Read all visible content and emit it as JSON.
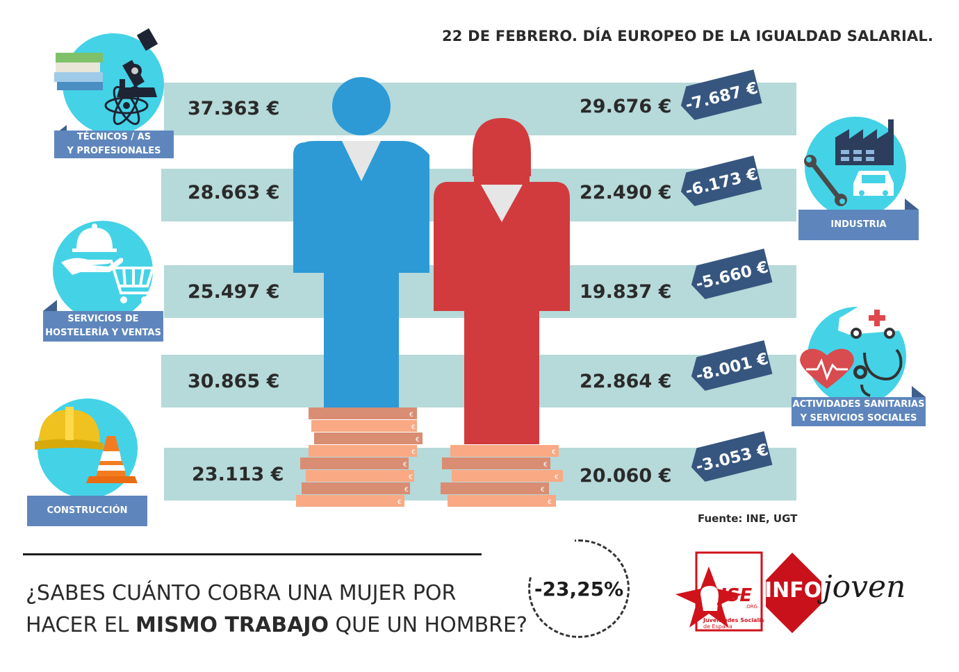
{
  "title": "22  DE FEBRERO. DÍA EUROPEO DE LA IGUALDAD SALARIAL.",
  "rows": [
    {
      "male": "37.363 €",
      "female": "29.676 €",
      "diff": "-7.687 €"
    },
    {
      "male": "28.663 €",
      "female": "22.490 €",
      "diff": "-6.173 €"
    },
    {
      "male": "25.497 €",
      "female": "19.837 €",
      "diff": "-5.660 €"
    },
    {
      "male": "30.865 €",
      "female": "22.864 €",
      "diff": "-8.001 €"
    },
    {
      "male": "23.113 €",
      "female": "20.060 €",
      "diff": "-3.053 €"
    }
  ],
  "categories": {
    "tecnicos": "TÉCNICOS / AS\nY PROFESIONALES",
    "industria": "INDUSTRIA",
    "hosteleria": "SERVICIOS DE\nHOSTELERÍA Y VENTAS",
    "sanitarias": "ACTIVIDADES SANITARIAS\nY SERVICIOS SOCIALES",
    "construccion": "CONSTRUCCIÓN"
  },
  "source": "Fuente: INE, UGT",
  "question": {
    "part1": "¿SABES CUÁNTO COBRA UNA MUJER POR",
    "part2": "HACER EL ",
    "bold": "MISMO TRABAJO",
    "part3": " QUE UN HOMBRE?"
  },
  "gap": "-23,25%",
  "logos": {
    "jse": "JSE",
    "jse_org": ".ORG",
    "jse_sub1": "Juventudes Socialistas",
    "jse_sub2": "de España",
    "info": "INFO",
    "joven": "joven"
  },
  "coin_symbol": "€",
  "colors": {
    "band": "#b6d9d9",
    "male": "#2d9ad6",
    "female": "#d13b3d",
    "diff_tag": "#36567f",
    "label": "#5e86bc",
    "icon_circle": "#44d2e6",
    "coin_light": "#f9a984",
    "coin_dark": "#d98d73"
  }
}
